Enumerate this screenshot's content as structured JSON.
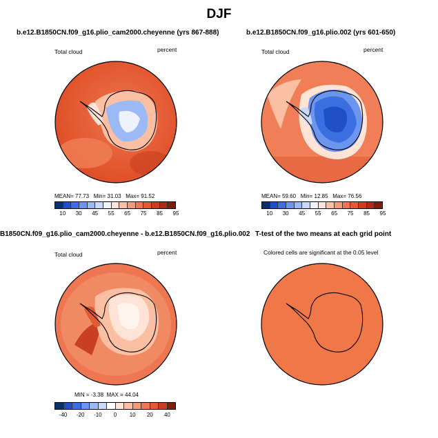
{
  "title": "DJF",
  "panels": {
    "p1": {
      "title": "b.e12.B1850CN.f09_g16.plio_cam2000.cheyenne (yrs 867-888)",
      "var_label": "Total cloud",
      "units": "percent",
      "stats": {
        "mean_label": "MEAN=",
        "mean": "77.73",
        "min_label": "Min=",
        "min": "31.03",
        "max_label": "Max=",
        "max": "91.52"
      },
      "colorbar_ticks": [
        "10",
        "30",
        "45",
        "55",
        "65",
        "75",
        "85",
        "95"
      ]
    },
    "p2": {
      "title": "b.e12.B1850CN.f09_g16.plio.002 (yrs 601-650)",
      "var_label": "Total cloud",
      "units": "percent",
      "stats": {
        "mean_label": "MEAN=",
        "mean": "59.60",
        "min_label": "Min=",
        "min": "12.85",
        "max_label": "Max=",
        "max": "76.56"
      },
      "colorbar_ticks": [
        "10",
        "30",
        "45",
        "55",
        "65",
        "75",
        "85",
        "95"
      ]
    },
    "p3": {
      "title": "B1850CN.f09_g16.plio_cam2000.cheyenne - b.e12.B1850CN.f09_g16.plio.002",
      "var_label": "Total cloud",
      "units": "percent",
      "stats": {
        "min_label": "MIN =",
        "min": "-3.38",
        "max_label": "MAX =",
        "max": "44.04"
      },
      "colorbar_ticks": [
        "-40",
        "-20",
        "-10",
        "0",
        "10",
        "20",
        "40"
      ]
    },
    "p4": {
      "title": "T-test of the two means at each grid point",
      "note": "Colored cells are significant at the 0.05 level"
    }
  },
  "colors": {
    "abs_scale": [
      "#08306b",
      "#1f4fc4",
      "#3b6fe0",
      "#6b95ee",
      "#9bbaf5",
      "#c8d9f9",
      "#eef2fc",
      "#fde4d6",
      "#fbbfa3",
      "#f59a76",
      "#ee7650",
      "#e25a33",
      "#c8401f",
      "#a82e14",
      "#7f1d0a"
    ],
    "diff_scale": [
      "#08306b",
      "#1f4fc4",
      "#3b6fe0",
      "#6b95ee",
      "#9bbaf5",
      "#c8d9f9",
      "#ffffff",
      "#fde4d6",
      "#fbbfa3",
      "#f59a76",
      "#ee7650",
      "#e25a33",
      "#c8401f",
      "#7f1d0a"
    ],
    "ttest_fill": "#ef7748"
  }
}
